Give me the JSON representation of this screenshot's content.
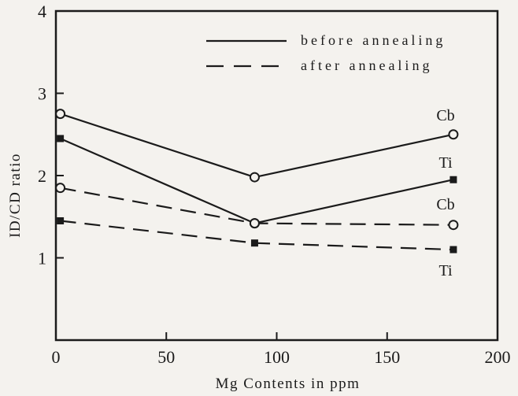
{
  "chart_data": {
    "type": "line",
    "title": "",
    "xlabel": "Mg Contents in ppm",
    "ylabel": "ID/CD ratio",
    "xlim": [
      0,
      200
    ],
    "ylim": [
      0,
      4
    ],
    "x_ticks": [
      0,
      50,
      100,
      150,
      200
    ],
    "y_ticks": [
      1,
      2,
      3,
      4
    ],
    "grid": false,
    "legend_position": "top-right",
    "legend": [
      {
        "label": "before annealing",
        "style": "solid"
      },
      {
        "label": "after annealing",
        "style": "dashed"
      }
    ],
    "series": [
      {
        "name": "Cb",
        "annealing": "before",
        "line_style": "solid",
        "marker": "open-circle",
        "x": [
          2,
          90,
          180
        ],
        "y": [
          2.75,
          1.98,
          2.5
        ]
      },
      {
        "name": "Ti",
        "annealing": "before",
        "line_style": "solid",
        "marker": "filled-square",
        "x": [
          2,
          90,
          180
        ],
        "y": [
          2.45,
          1.42,
          1.95
        ]
      },
      {
        "name": "Cb",
        "annealing": "after",
        "line_style": "dashed",
        "marker": "open-circle",
        "x": [
          2,
          90,
          180
        ],
        "y": [
          1.85,
          1.42,
          1.4
        ]
      },
      {
        "name": "Ti",
        "annealing": "after",
        "line_style": "dashed",
        "marker": "filled-square",
        "x": [
          2,
          90,
          180
        ],
        "y": [
          1.45,
          1.18,
          1.1
        ]
      }
    ],
    "annotations": [
      {
        "text": "Cb"
      },
      {
        "text": "Ti"
      },
      {
        "text": "Cb"
      },
      {
        "text": "Ti"
      }
    ],
    "colors": {
      "ink": "#1b1b1b",
      "background": "#f4f2ee"
    }
  }
}
